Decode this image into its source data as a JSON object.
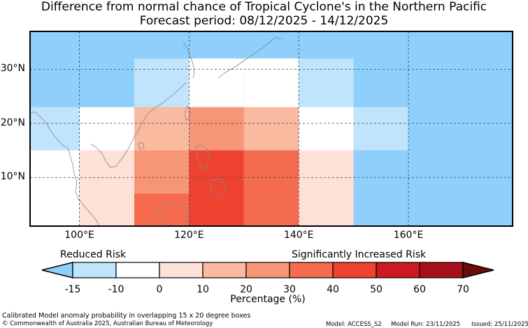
{
  "title": {
    "line1": "Difference from normal chance of Tropical Cyclone's in the Northern Pacific",
    "line2": "Forecast period: 08/12/2025 - 14/12/2025"
  },
  "map": {
    "lon_range": [
      91,
      179
    ],
    "lat_range": [
      1,
      37
    ],
    "lat_ticks": [
      {
        "value": 30,
        "label": "30°N"
      },
      {
        "value": 20,
        "label": "20°N"
      },
      {
        "value": 10,
        "label": "10°N"
      }
    ],
    "lon_ticks": [
      {
        "value": 100,
        "label": "100°E"
      },
      {
        "value": 120,
        "label": "120°E"
      },
      {
        "value": 140,
        "label": "140°E"
      },
      {
        "value": 160,
        "label": "160°E"
      }
    ],
    "colors": {
      "ocean_background": "#8ecffc",
      "grid_line": "#444444",
      "coastline": "#888888"
    },
    "cells": [
      {
        "lon": [
          91,
          100
        ],
        "lat": [
          15,
          23
        ],
        "value": -12,
        "color": "#c0e4fc"
      },
      {
        "lon": [
          91,
          100
        ],
        "lat": [
          1,
          15
        ],
        "value": 0,
        "color": "#ffffff"
      },
      {
        "lon": [
          100,
          110
        ],
        "lat": [
          15,
          23
        ],
        "value": 0,
        "color": "#ffffff"
      },
      {
        "lon": [
          100,
          110
        ],
        "lat": [
          1,
          15
        ],
        "value": 5,
        "color": "#fde0d6"
      },
      {
        "lon": [
          110,
          120
        ],
        "lat": [
          23,
          32
        ],
        "value": -12,
        "color": "#c0e4fc"
      },
      {
        "lon": [
          110,
          120
        ],
        "lat": [
          15,
          23
        ],
        "value": 15,
        "color": "#f9baa0"
      },
      {
        "lon": [
          110,
          120
        ],
        "lat": [
          7,
          15
        ],
        "value": 25,
        "color": "#f79676"
      },
      {
        "lon": [
          110,
          120
        ],
        "lat": [
          1,
          7
        ],
        "value": 35,
        "color": "#f46b4e"
      },
      {
        "lon": [
          120,
          130
        ],
        "lat": [
          23,
          32
        ],
        "value": 0,
        "color": "#ffffff"
      },
      {
        "lon": [
          120,
          130
        ],
        "lat": [
          15,
          23
        ],
        "value": 25,
        "color": "#f79676"
      },
      {
        "lon": [
          120,
          130
        ],
        "lat": [
          1,
          15
        ],
        "value": 45,
        "color": "#ee4330"
      },
      {
        "lon": [
          130,
          140
        ],
        "lat": [
          23,
          32
        ],
        "value": 0,
        "color": "#ffffff"
      },
      {
        "lon": [
          130,
          140
        ],
        "lat": [
          15,
          23
        ],
        "value": 15,
        "color": "#f9baa0"
      },
      {
        "lon": [
          130,
          140
        ],
        "lat": [
          1,
          15
        ],
        "value": 35,
        "color": "#f46b4e"
      },
      {
        "lon": [
          140,
          150
        ],
        "lat": [
          23,
          32
        ],
        "value": -12,
        "color": "#c0e4fc"
      },
      {
        "lon": [
          140,
          150
        ],
        "lat": [
          15,
          23
        ],
        "value": 0,
        "color": "#ffffff"
      },
      {
        "lon": [
          140,
          150
        ],
        "lat": [
          1,
          15
        ],
        "value": 5,
        "color": "#fde0d6"
      },
      {
        "lon": [
          150,
          160
        ],
        "lat": [
          15,
          23
        ],
        "value": -12,
        "color": "#c0e4fc"
      }
    ]
  },
  "colorbar": {
    "label_left": "Reduced Risk",
    "label_right": "Significantly Increased Risk",
    "xlabel": "Percentage (%)",
    "ticks": [
      "-15",
      "-10",
      "0",
      "10",
      "20",
      "30",
      "40",
      "50",
      "60",
      "70"
    ],
    "under_color": "#8ecffc",
    "over_color": "#6a0c0c",
    "bins": [
      {
        "from": -15,
        "to": -10,
        "color": "#c0e4fc"
      },
      {
        "from": -10,
        "to": 0,
        "color": "#ffffff"
      },
      {
        "from": 0,
        "to": 10,
        "color": "#fde0d6"
      },
      {
        "from": 10,
        "to": 20,
        "color": "#f9baa0"
      },
      {
        "from": 20,
        "to": 30,
        "color": "#f79676"
      },
      {
        "from": 30,
        "to": 40,
        "color": "#f46b4e"
      },
      {
        "from": 40,
        "to": 50,
        "color": "#ee4330"
      },
      {
        "from": 50,
        "to": 60,
        "color": "#cd1a21"
      },
      {
        "from": 60,
        "to": 70,
        "color": "#a40f18"
      }
    ]
  },
  "footer": {
    "note": "Calibrated Model anomaly probability in overlapping 15 x 20 degree boxes",
    "copyright": "© Commonwealth of Australia 2025, Australian Bureau of Meteorology",
    "model": "Model: ACCESS_S2",
    "model_run": "Model Run: 23/11/2025",
    "issued": "Issued: 25/11/2025"
  }
}
